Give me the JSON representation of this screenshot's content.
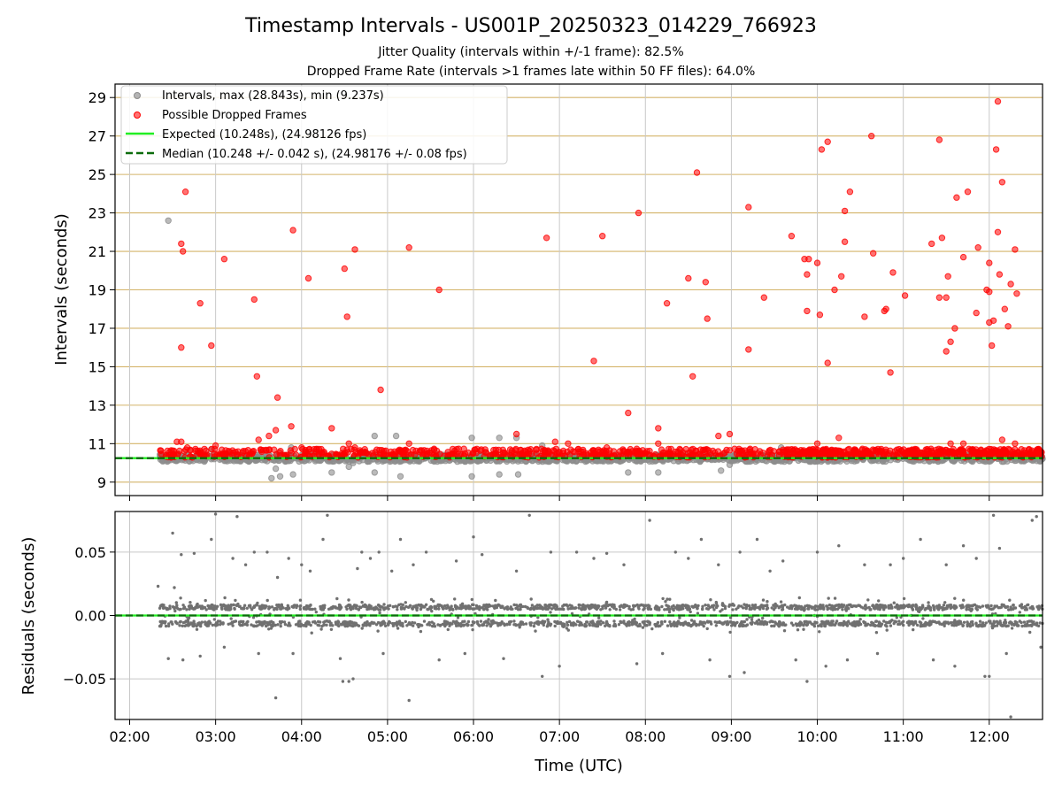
{
  "chart_data": {
    "title": "Timestamp Intervals - US001P_20250323_014229_766923",
    "subtitle_1": "Jitter Quality (intervals within +/-1 frame): 82.5%",
    "subtitle_2": "Dropped Frame Rate (intervals >1 frames late within 50 FF files): 64.0%",
    "xlabel": "Time (UTC)",
    "x_ticks": [
      "02:00",
      "03:00",
      "04:00",
      "05:00",
      "06:00",
      "07:00",
      "08:00",
      "09:00",
      "10:00",
      "11:00",
      "12:00"
    ],
    "x_range_hours": [
      1.83,
      12.62
    ],
    "colors": {
      "intervals": "#8c8c8c",
      "dropped": "#ff0000",
      "expected": "#22ee22",
      "median": "#0b6b0b",
      "hgrid_top": "#d4b46a",
      "grid": "#c8c8c8",
      "residuals": "#707070"
    },
    "panels": [
      {
        "type": "scatter",
        "ylabel": "Intervals (seconds)",
        "ylim": [
          8.3,
          29.7
        ],
        "y_ticks": [
          "9",
          "11",
          "13",
          "15",
          "17",
          "19",
          "21",
          "23",
          "25",
          "27",
          "29"
        ],
        "legend": {
          "placement": "top-left",
          "items": [
            "Intervals, max (28.843s), min (9.237s)",
            "Possible Dropped Frames",
            "Expected (10.248s), (24.98126 fps)",
            "Median (10.248 +/- 0.042 s), (24.98176 +/- 0.08 fps)"
          ]
        },
        "expected_line": 10.248,
        "median_line": 10.248,
        "x_start_hours": 2.35,
        "intervals_outliers": [
          [
            2.45,
            22.6
          ],
          [
            2.95,
            10.7
          ],
          [
            3.65,
            9.2
          ],
          [
            3.7,
            9.7
          ],
          [
            3.75,
            9.3
          ],
          [
            3.9,
            9.4
          ],
          [
            3.88,
            10.8
          ],
          [
            4.35,
            9.5
          ],
          [
            4.55,
            9.8
          ],
          [
            4.85,
            11.4
          ],
          [
            4.85,
            9.5
          ],
          [
            5.1,
            11.4
          ],
          [
            5.15,
            9.3
          ],
          [
            5.55,
            10.2
          ],
          [
            5.98,
            11.3
          ],
          [
            5.98,
            9.3
          ],
          [
            6.3,
            11.3
          ],
          [
            6.3,
            9.4
          ],
          [
            6.5,
            11.3
          ],
          [
            6.52,
            9.4
          ],
          [
            6.8,
            10.9
          ],
          [
            7.8,
            9.5
          ],
          [
            8.15,
            9.5
          ],
          [
            8.88,
            9.6
          ],
          [
            8.98,
            9.9
          ],
          [
            9.58,
            10.8
          ],
          [
            6.05,
            10.1
          ],
          [
            4.6,
            10.0
          ]
        ],
        "dropped_points": [
          [
            2.55,
            11.1
          ],
          [
            2.6,
            11.1
          ],
          [
            2.6,
            16.0
          ],
          [
            2.6,
            21.4
          ],
          [
            2.62,
            21.0
          ],
          [
            2.65,
            24.1
          ],
          [
            2.67,
            10.8
          ],
          [
            2.82,
            18.3
          ],
          [
            2.95,
            16.1
          ],
          [
            3.0,
            10.9
          ],
          [
            3.1,
            20.6
          ],
          [
            3.45,
            18.5
          ],
          [
            3.48,
            14.5
          ],
          [
            3.5,
            11.2
          ],
          [
            3.62,
            11.4
          ],
          [
            3.7,
            11.7
          ],
          [
            3.72,
            13.4
          ],
          [
            3.88,
            11.9
          ],
          [
            3.9,
            22.1
          ],
          [
            4.0,
            10.8
          ],
          [
            4.08,
            19.6
          ],
          [
            4.35,
            11.8
          ],
          [
            4.5,
            20.1
          ],
          [
            4.53,
            17.6
          ],
          [
            4.55,
            11.0
          ],
          [
            4.62,
            21.1
          ],
          [
            4.62,
            10.8
          ],
          [
            4.92,
            13.8
          ],
          [
            5.25,
            21.2
          ],
          [
            5.25,
            11.0
          ],
          [
            5.6,
            19.0
          ],
          [
            6.5,
            11.5
          ],
          [
            6.85,
            21.7
          ],
          [
            6.95,
            11.1
          ],
          [
            7.1,
            11.0
          ],
          [
            7.4,
            15.3
          ],
          [
            7.5,
            21.8
          ],
          [
            7.55,
            10.8
          ],
          [
            7.8,
            12.6
          ],
          [
            7.92,
            23.0
          ],
          [
            8.15,
            11.8
          ],
          [
            8.15,
            11.0
          ],
          [
            8.25,
            18.3
          ],
          [
            8.5,
            19.6
          ],
          [
            8.55,
            14.5
          ],
          [
            8.6,
            25.1
          ],
          [
            8.7,
            19.4
          ],
          [
            8.72,
            17.5
          ],
          [
            8.85,
            11.4
          ],
          [
            8.98,
            11.5
          ],
          [
            9.2,
            15.9
          ],
          [
            9.2,
            23.3
          ],
          [
            9.38,
            18.6
          ],
          [
            9.7,
            21.8
          ],
          [
            9.85,
            20.6
          ],
          [
            9.88,
            17.9
          ],
          [
            9.88,
            19.8
          ],
          [
            9.9,
            20.6
          ],
          [
            10.0,
            20.4
          ],
          [
            10.03,
            17.7
          ],
          [
            10.05,
            26.3
          ],
          [
            10.12,
            26.7
          ],
          [
            10.12,
            15.2
          ],
          [
            10.2,
            19.0
          ],
          [
            10.25,
            11.3
          ],
          [
            10.28,
            19.7
          ],
          [
            10.32,
            21.5
          ],
          [
            10.32,
            23.1
          ],
          [
            10.38,
            24.1
          ],
          [
            10.55,
            17.6
          ],
          [
            10.63,
            27.0
          ],
          [
            10.65,
            20.9
          ],
          [
            10.78,
            17.9
          ],
          [
            10.8,
            18.0
          ],
          [
            10.85,
            14.7
          ],
          [
            10.88,
            19.9
          ],
          [
            11.02,
            18.7
          ],
          [
            11.33,
            21.4
          ],
          [
            11.42,
            26.8
          ],
          [
            11.42,
            18.6
          ],
          [
            11.45,
            21.7
          ],
          [
            11.5,
            15.8
          ],
          [
            11.5,
            18.6
          ],
          [
            11.52,
            19.7
          ],
          [
            11.55,
            16.3
          ],
          [
            11.6,
            17.0
          ],
          [
            11.62,
            23.8
          ],
          [
            11.7,
            20.7
          ],
          [
            11.75,
            24.1
          ],
          [
            11.85,
            17.8
          ],
          [
            11.87,
            21.2
          ],
          [
            11.97,
            19.0
          ],
          [
            12.0,
            20.4
          ],
          [
            12.0,
            18.9
          ],
          [
            12.0,
            17.3
          ],
          [
            12.03,
            16.1
          ],
          [
            12.05,
            17.4
          ],
          [
            12.08,
            26.3
          ],
          [
            12.1,
            28.8
          ],
          [
            12.1,
            22.0
          ],
          [
            12.12,
            19.8
          ],
          [
            12.15,
            24.6
          ],
          [
            12.18,
            18.0
          ],
          [
            12.22,
            17.1
          ],
          [
            12.25,
            19.3
          ],
          [
            12.3,
            21.1
          ],
          [
            12.32,
            18.8
          ],
          [
            10.0,
            11.0
          ],
          [
            11.55,
            11.0
          ],
          [
            11.7,
            11.0
          ],
          [
            12.15,
            11.2
          ],
          [
            12.3,
            11.0
          ]
        ]
      },
      {
        "type": "scatter",
        "ylabel": "Residuals (seconds)",
        "ylim": [
          -0.082,
          0.082
        ],
        "y_ticks": [
          "−0.05",
          "0.00",
          "0.05"
        ],
        "y_tick_values": [
          -0.05,
          0.0,
          0.05
        ],
        "zero_line": 0.0,
        "residual_outliers": [
          [
            2.33,
            0.023
          ],
          [
            2.45,
            -0.034
          ],
          [
            2.5,
            0.065
          ],
          [
            2.52,
            0.022
          ],
          [
            2.6,
            0.048
          ],
          [
            2.62,
            -0.035
          ],
          [
            2.75,
            0.049
          ],
          [
            2.82,
            -0.032
          ],
          [
            2.95,
            0.06
          ],
          [
            3.0,
            0.08
          ],
          [
            3.1,
            -0.025
          ],
          [
            3.2,
            0.045
          ],
          [
            3.25,
            0.078
          ],
          [
            3.35,
            0.04
          ],
          [
            3.45,
            0.05
          ],
          [
            3.5,
            -0.03
          ],
          [
            3.6,
            0.05
          ],
          [
            3.7,
            -0.065
          ],
          [
            3.72,
            0.03
          ],
          [
            3.85,
            0.045
          ],
          [
            3.9,
            -0.03
          ],
          [
            4.0,
            0.04
          ],
          [
            4.1,
            0.035
          ],
          [
            4.25,
            0.06
          ],
          [
            4.3,
            0.079
          ],
          [
            4.45,
            -0.034
          ],
          [
            4.48,
            -0.052
          ],
          [
            4.55,
            -0.052
          ],
          [
            4.6,
            -0.05
          ],
          [
            4.65,
            0.037
          ],
          [
            4.7,
            0.05
          ],
          [
            4.8,
            0.045
          ],
          [
            4.9,
            0.05
          ],
          [
            4.95,
            -0.03
          ],
          [
            5.05,
            0.035
          ],
          [
            5.15,
            0.06
          ],
          [
            5.25,
            -0.067
          ],
          [
            5.3,
            0.04
          ],
          [
            5.45,
            0.05
          ],
          [
            5.6,
            -0.035
          ],
          [
            5.8,
            0.043
          ],
          [
            5.9,
            -0.03
          ],
          [
            6.0,
            0.062
          ],
          [
            6.1,
            0.048
          ],
          [
            6.35,
            -0.034
          ],
          [
            6.5,
            0.035
          ],
          [
            6.65,
            0.079
          ],
          [
            6.8,
            -0.048
          ],
          [
            6.9,
            0.05
          ],
          [
            7.0,
            -0.04
          ],
          [
            7.2,
            0.05
          ],
          [
            7.4,
            0.045
          ],
          [
            7.55,
            0.049
          ],
          [
            7.75,
            0.04
          ],
          [
            7.9,
            -0.038
          ],
          [
            8.05,
            0.075
          ],
          [
            8.2,
            -0.03
          ],
          [
            8.35,
            0.05
          ],
          [
            8.5,
            0.045
          ],
          [
            8.65,
            0.06
          ],
          [
            8.75,
            -0.035
          ],
          [
            8.85,
            0.04
          ],
          [
            8.98,
            -0.048
          ],
          [
            9.1,
            0.05
          ],
          [
            9.15,
            -0.045
          ],
          [
            9.3,
            0.06
          ],
          [
            9.45,
            0.035
          ],
          [
            9.6,
            0.043
          ],
          [
            9.75,
            -0.035
          ],
          [
            9.88,
            -0.052
          ],
          [
            10.0,
            0.05
          ],
          [
            10.1,
            -0.04
          ],
          [
            10.25,
            0.055
          ],
          [
            10.35,
            -0.035
          ],
          [
            10.55,
            0.04
          ],
          [
            10.7,
            -0.03
          ],
          [
            10.85,
            0.04
          ],
          [
            11.0,
            0.045
          ],
          [
            11.2,
            0.06
          ],
          [
            11.35,
            -0.035
          ],
          [
            11.5,
            0.04
          ],
          [
            11.6,
            -0.04
          ],
          [
            11.7,
            0.055
          ],
          [
            11.85,
            0.045
          ],
          [
            11.95,
            -0.048
          ],
          [
            12.0,
            -0.048
          ],
          [
            12.05,
            0.079
          ],
          [
            12.12,
            0.053
          ],
          [
            12.2,
            -0.03
          ],
          [
            12.25,
            -0.08
          ],
          [
            12.5,
            0.075
          ],
          [
            12.55,
            0.078
          ],
          [
            12.6,
            -0.025
          ]
        ]
      }
    ]
  }
}
